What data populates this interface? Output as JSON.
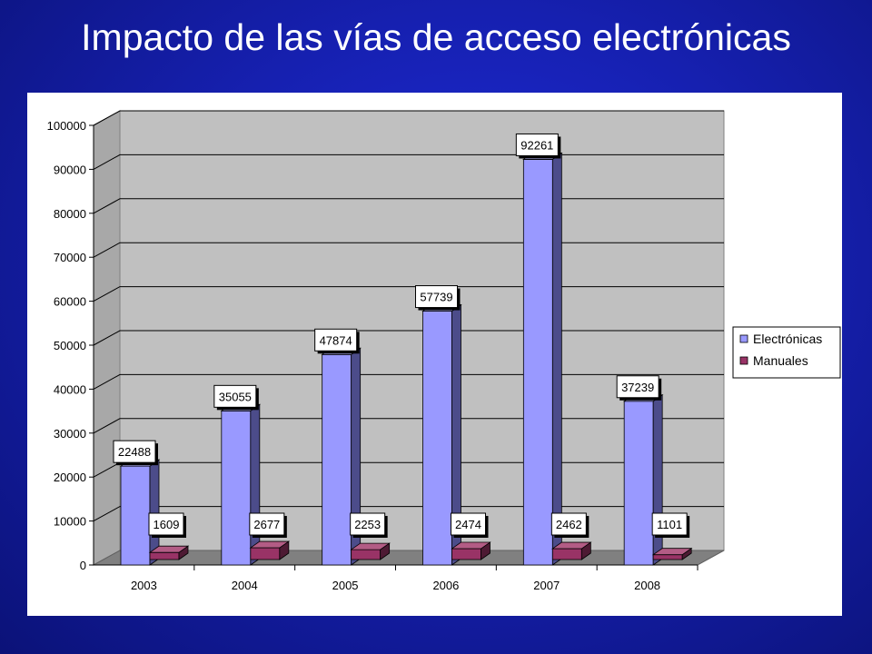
{
  "slide": {
    "title": "Impacto de las vías de acceso electrónicas"
  },
  "chart_data": {
    "type": "bar",
    "categories": [
      "2003",
      "2004",
      "2005",
      "2006",
      "2007",
      "2008"
    ],
    "series": [
      {
        "name": "Electrónicas",
        "values": [
          22488,
          35055,
          47874,
          57739,
          92261,
          37239
        ],
        "color": "#9999ff"
      },
      {
        "name": "Manuales",
        "values": [
          1609,
          2677,
          2253,
          2474,
          2462,
          1101
        ],
        "color": "#993366"
      }
    ],
    "ylim": [
      0,
      100000
    ],
    "yticks": [
      "0",
      "10000",
      "20000",
      "30000",
      "40000",
      "50000",
      "60000",
      "70000",
      "80000",
      "90000",
      "100000"
    ],
    "grid": true,
    "legend": "right",
    "data_labels": true
  }
}
